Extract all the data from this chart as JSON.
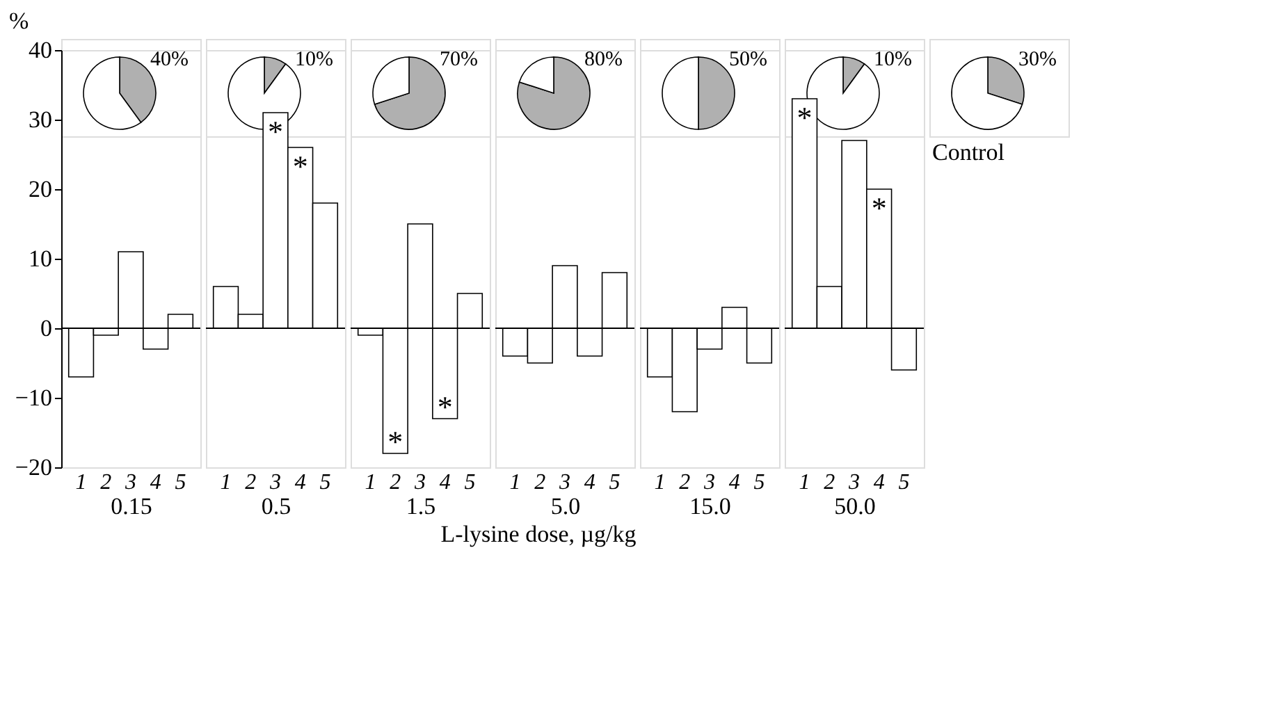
{
  "chart_data": [
    {
      "type": "pie",
      "categories": [
        null,
        null
      ],
      "values": [
        40,
        60
      ],
      "colors": [
        "#b0b0b0",
        "#ffffff"
      ],
      "value_labels": [
        "40%",
        null
      ]
    },
    {
      "type": "pie",
      "categories": [
        null,
        null
      ],
      "values": [
        10,
        90
      ],
      "colors": [
        "#b0b0b0",
        "#ffffff"
      ],
      "value_labels": [
        "10%",
        null
      ]
    },
    {
      "type": "pie",
      "categories": [
        null,
        null
      ],
      "values": [
        70,
        30
      ],
      "colors": [
        "#b0b0b0",
        "#ffffff"
      ],
      "value_labels": [
        "70%",
        null
      ]
    },
    {
      "type": "pie",
      "categories": [
        null,
        null
      ],
      "values": [
        80,
        20
      ],
      "colors": [
        "#b0b0b0",
        "#ffffff"
      ],
      "value_labels": [
        "80%",
        null
      ]
    },
    {
      "type": "pie",
      "categories": [
        null,
        null
      ],
      "values": [
        50,
        50
      ],
      "colors": [
        "#b0b0b0",
        "#ffffff"
      ],
      "value_labels": [
        "50%",
        null
      ]
    },
    {
      "type": "pie",
      "categories": [
        null,
        null
      ],
      "values": [
        10,
        90
      ],
      "colors": [
        "#b0b0b0",
        "#ffffff"
      ],
      "value_labels": [
        "10%",
        null
      ]
    },
    {
      "type": "pie",
      "categories": [
        null,
        null
      ],
      "values": [
        30,
        70
      ],
      "colors": [
        "#b0b0b0",
        "#ffffff"
      ],
      "value_labels": [
        "30%",
        null
      ],
      "annotations": [
        "Control"
      ]
    },
    {
      "type": "bar",
      "categories": [
        "1",
        "2",
        "3",
        "4",
        "5"
      ],
      "values": [
        -7,
        -1,
        11,
        -3,
        2
      ],
      "color": "#ffffff",
      "xlabel": "0.15",
      "ylabel": "%",
      "ylim": [
        -20,
        40
      ],
      "yticks": [
        -20,
        -10,
        0,
        10,
        20,
        30,
        40
      ],
      "ref_lines": [
        {
          "axis": "y",
          "value": 0
        }
      ],
      "annotations": [
        "L-lysine dose, µg/kg"
      ]
    },
    {
      "type": "bar",
      "categories": [
        "1",
        "2",
        "3",
        "4",
        "5"
      ],
      "values": [
        6,
        2,
        31,
        26,
        18
      ],
      "color": "#ffffff",
      "xlabel": "0.5",
      "ylim": [
        -20,
        40
      ],
      "tick_labels": "x",
      "ref_lines": [
        {
          "axis": "y",
          "value": 0
        }
      ],
      "annotations": [
        {
          "text": "*",
          "x": "3",
          "y": 31
        },
        {
          "text": "*",
          "x": "4",
          "y": 26
        }
      ]
    },
    {
      "type": "bar",
      "categories": [
        "1",
        "2",
        "3",
        "4",
        "5"
      ],
      "values": [
        -1,
        -18,
        15,
        -13,
        5
      ],
      "color": "#ffffff",
      "xlabel": "1.5",
      "ylim": [
        -20,
        40
      ],
      "tick_labels": "x",
      "ref_lines": [
        {
          "axis": "y",
          "value": 0
        }
      ],
      "annotations": [
        {
          "text": "*",
          "x": "2",
          "y": -18
        },
        {
          "text": "*",
          "x": "4",
          "y": -13
        }
      ]
    },
    {
      "type": "bar",
      "categories": [
        "1",
        "2",
        "3",
        "4",
        "5"
      ],
      "values": [
        -4,
        -5,
        9,
        -4,
        8
      ],
      "color": "#ffffff",
      "xlabel": "5.0",
      "ylim": [
        -20,
        40
      ],
      "tick_labels": "x",
      "ref_lines": [
        {
          "axis": "y",
          "value": 0
        }
      ]
    },
    {
      "type": "bar",
      "categories": [
        "1",
        "2",
        "3",
        "4",
        "5"
      ],
      "values": [
        -7,
        -12,
        -3,
        3,
        -5
      ],
      "color": "#ffffff",
      "xlabel": "15.0",
      "ylim": [
        -20,
        40
      ],
      "tick_labels": "x",
      "ref_lines": [
        {
          "axis": "y",
          "value": 0
        }
      ]
    },
    {
      "type": "bar",
      "categories": [
        "1",
        "2",
        "3",
        "4",
        "5"
      ],
      "values": [
        33,
        6,
        27,
        20,
        -6
      ],
      "color": "#ffffff",
      "xlabel": "50.0",
      "ylim": [
        -20,
        40
      ],
      "tick_labels": "x",
      "ref_lines": [
        {
          "axis": "y",
          "value": 0
        }
      ],
      "annotations": [
        {
          "text": "*",
          "x": "1",
          "y": 33
        },
        {
          "text": "*",
          "x": "4",
          "y": 20
        }
      ]
    }
  ]
}
